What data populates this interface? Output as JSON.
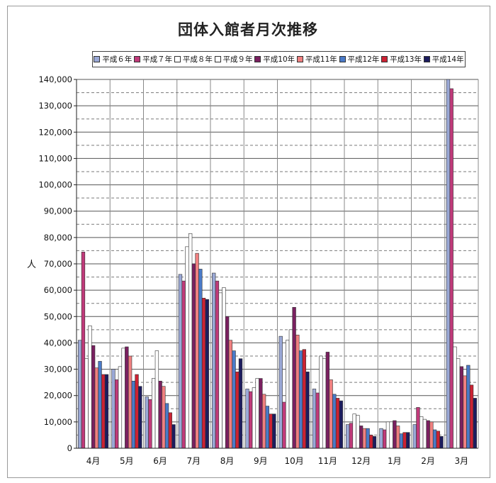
{
  "chart_data": {
    "type": "bar",
    "title": "団体入館者月次推移",
    "ylabel": "人",
    "ylim": [
      0,
      140000
    ],
    "y_ticks": [
      "0",
      "10,000",
      "20,000",
      "30,000",
      "40,000",
      "50,000",
      "60,000",
      "70,000",
      "80,000",
      "90,000",
      "100,000",
      "110,000",
      "120,000",
      "130,000",
      "140,000"
    ],
    "categories": [
      "4月",
      "5月",
      "6月",
      "7月",
      "8月",
      "9月",
      "10月",
      "11月",
      "12月",
      "1月",
      "2月",
      "3月"
    ],
    "legend_position": "top",
    "grid": true,
    "series": [
      {
        "name": "平成６年",
        "color": "#9aa8d6",
        "values": [
          41000,
          30000,
          19500,
          66000,
          66500,
          22500,
          42500,
          22500,
          9000,
          7500,
          9000,
          140000
        ]
      },
      {
        "name": "平成７年",
        "color": "#c03a7a",
        "values": [
          74500,
          26000,
          18500,
          63500,
          63500,
          21500,
          17500,
          21000,
          9500,
          7000,
          15500,
          136500
        ]
      },
      {
        "name": "平成８年",
        "color": "#ffffff",
        "values": [
          34000,
          31000,
          26500,
          76500,
          59000,
          23000,
          41000,
          35000,
          13000,
          10000,
          12000,
          38500
        ]
      },
      {
        "name": "平成９年",
        "color": "#ffffff",
        "values": [
          46500,
          38000,
          37000,
          81500,
          61000,
          26500,
          45000,
          34000,
          12500,
          10000,
          11000,
          34000
        ]
      },
      {
        "name": "平成10年",
        "color": "#7a2060",
        "values": [
          39000,
          38500,
          25500,
          70000,
          50000,
          26500,
          53500,
          36500,
          8500,
          10500,
          10500,
          31000
        ]
      },
      {
        "name": "平成11年",
        "color": "#f08080",
        "values": [
          30500,
          35000,
          23500,
          74000,
          41000,
          20500,
          43000,
          26000,
          7500,
          8500,
          10000,
          27500
        ]
      },
      {
        "name": "平成12年",
        "color": "#4a7ac8",
        "values": [
          33000,
          25500,
          17000,
          68000,
          37000,
          16000,
          37000,
          20500,
          7500,
          5500,
          7000,
          31500
        ]
      },
      {
        "name": "平成13年",
        "color": "#cc2233",
        "values": [
          28000,
          28000,
          13500,
          57000,
          29000,
          13000,
          37500,
          19000,
          5000,
          6000,
          6500,
          24000
        ]
      },
      {
        "name": "平成14年",
        "color": "#1c1c5e",
        "values": [
          28000,
          23500,
          9000,
          56500,
          34000,
          13000,
          29000,
          18000,
          4500,
          6000,
          4500,
          19000
        ]
      }
    ]
  }
}
